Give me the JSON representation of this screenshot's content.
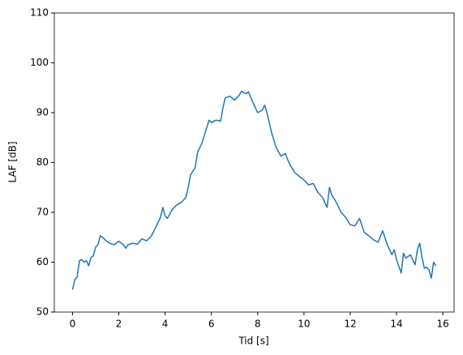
{
  "chart_data": {
    "type": "line",
    "x_label": "Tid [s]",
    "y_label": "LAF [dB]",
    "xlim": [
      -0.785,
      16.485
    ],
    "ylim": [
      50,
      110
    ],
    "xticks": [
      0,
      2,
      4,
      6,
      8,
      10,
      12,
      14,
      16
    ],
    "yticks": [
      50,
      60,
      70,
      80,
      90,
      100,
      110
    ],
    "series": [
      {
        "color": "#1f77b4",
        "x": [
          0,
          0.1,
          0.2,
          0.3,
          0.4,
          0.5,
          0.6,
          0.7,
          0.8,
          0.9,
          1.0,
          1.1,
          1.2,
          1.3,
          1.4,
          1.6,
          1.8,
          2.0,
          2.2,
          2.3,
          2.4,
          2.6,
          2.8,
          3.0,
          3.2,
          3.4,
          3.6,
          3.8,
          3.9,
          4.0,
          4.1,
          4.3,
          4.5,
          4.7,
          4.9,
          5.0,
          5.1,
          5.3,
          5.4,
          5.5,
          5.6,
          5.8,
          5.9,
          6.0,
          6.2,
          6.4,
          6.5,
          6.6,
          6.8,
          7.0,
          7.2,
          7.3,
          7.5,
          7.6,
          7.8,
          8.0,
          8.2,
          8.3,
          8.4,
          8.6,
          8.8,
          9.0,
          9.2,
          9.3,
          9.4,
          9.6,
          9.8,
          10.0,
          10.2,
          10.4,
          10.6,
          10.8,
          11.0,
          11.1,
          11.2,
          11.4,
          11.6,
          11.8,
          12.0,
          12.2,
          12.4,
          12.6,
          12.8,
          13.0,
          13.2,
          13.4,
          13.6,
          13.8,
          13.9,
          14.0,
          14.2,
          14.3,
          14.4,
          14.6,
          14.8,
          14.9,
          15.0,
          15.1,
          15.2,
          15.3,
          15.4,
          15.5,
          15.6,
          15.7
        ],
        "values": [
          54.5,
          56.5,
          57,
          60.3,
          60.5,
          60,
          60.3,
          59.3,
          61,
          61.3,
          63,
          63.5,
          65.3,
          65,
          64.5,
          63.8,
          63.5,
          64.2,
          63.5,
          62.8,
          63.5,
          63.8,
          63.6,
          64.7,
          64.3,
          65.2,
          67,
          69,
          71,
          69.3,
          68.8,
          70.5,
          71.5,
          72,
          73,
          75,
          77.5,
          79,
          82,
          83,
          84,
          87,
          88.5,
          88,
          88.5,
          88.3,
          91,
          93,
          93.3,
          92.5,
          93.5,
          94.3,
          93.8,
          94.2,
          92,
          90,
          90.5,
          91.5,
          90,
          86,
          83,
          81.3,
          81.8,
          80.5,
          79.5,
          78,
          77.2,
          76.5,
          75.5,
          75.8,
          74,
          73,
          71,
          75,
          73.5,
          72,
          70,
          69,
          67.5,
          67.3,
          68.8,
          66,
          65.3,
          64.5,
          64,
          66.3,
          63.5,
          61.5,
          62.5,
          60.5,
          57.8,
          61.8,
          60.8,
          61.5,
          59.5,
          62.5,
          63.8,
          61,
          58.8,
          59,
          58.5,
          56.8,
          60,
          59.3
        ]
      }
    ]
  }
}
